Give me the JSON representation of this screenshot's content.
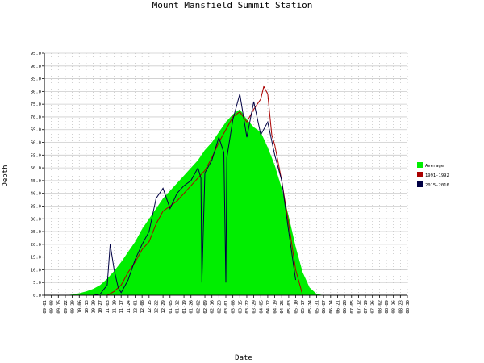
{
  "chart_data": {
    "type": "area",
    "title": "Mount Mansfield Summit Station",
    "xlabel": "Date",
    "ylabel": "Depth",
    "ylim": [
      0,
      95
    ],
    "y_ticks": [
      "0.0",
      "5.0",
      "10.0",
      "15.0",
      "20.0",
      "25.0",
      "30.0",
      "35.0",
      "40.0",
      "45.0",
      "50.0",
      "55.0",
      "60.0",
      "65.0",
      "70.0",
      "75.0",
      "80.0",
      "85.0",
      "90.0",
      "95.0"
    ],
    "x_ticks": [
      "09-01",
      "09-08",
      "09-15",
      "09-22",
      "09-29",
      "10-06",
      "10-13",
      "10-20",
      "10-27",
      "11-03",
      "11-10",
      "11-17",
      "11-24",
      "12-01",
      "12-08",
      "12-15",
      "12-22",
      "12-29",
      "01-05",
      "01-12",
      "01-19",
      "01-26",
      "02-02",
      "02-09",
      "02-16",
      "02-23",
      "03-01",
      "03-08",
      "03-15",
      "03-22",
      "03-29",
      "04-05",
      "04-12",
      "04-19",
      "04-26",
      "05-03",
      "05-10",
      "05-17",
      "05-24",
      "05-31",
      "06-07",
      "06-14",
      "06-21",
      "06-28",
      "07-05",
      "07-12",
      "07-19",
      "07-26",
      "08-02",
      "08-09",
      "08-16",
      "08-23",
      "08-30"
    ],
    "grid": true,
    "legend_position": "right",
    "series": [
      {
        "name": "Average",
        "color": "#00ee00",
        "style": "area",
        "x": [
          7,
          14,
          21,
          28,
          35,
          42,
          49,
          56,
          63,
          70,
          77,
          84,
          91,
          98,
          105,
          112,
          119,
          126,
          133,
          140,
          147,
          154,
          161,
          168,
          175,
          182,
          189,
          196,
          203,
          210,
          217,
          224,
          231,
          238,
          245,
          252,
          259,
          266,
          273,
          280,
          287
        ],
        "values": [
          0,
          0,
          0,
          0.3,
          0.8,
          1.5,
          2.5,
          4,
          6.5,
          9.5,
          13,
          17,
          21,
          26,
          30,
          34,
          38,
          41,
          44,
          47,
          50,
          53,
          57,
          60,
          64,
          68,
          71,
          73,
          69,
          66,
          64,
          58,
          51,
          42,
          31,
          19,
          9,
          3,
          0.5,
          0,
          0
        ]
      },
      {
        "name": "1991-1992",
        "color": "#aa0000",
        "style": "line",
        "x": [
          63,
          70,
          77,
          84,
          91,
          98,
          105,
          112,
          119,
          126,
          133,
          140,
          147,
          154,
          161,
          168,
          175,
          182,
          189,
          196,
          203,
          210,
          217,
          220,
          224,
          228,
          231,
          238,
          245,
          252,
          259
        ],
        "values": [
          0,
          1.5,
          4,
          9,
          13,
          18,
          21,
          28,
          33,
          35,
          37,
          40,
          43,
          46,
          49,
          54,
          60,
          65,
          70,
          72,
          68,
          73,
          77,
          82,
          79,
          63,
          59,
          45,
          28,
          10,
          0
        ]
      },
      {
        "name": "2015-2016",
        "color": "#000044",
        "style": "line",
        "x": [
          49,
          56,
          63,
          66,
          70,
          74,
          77,
          84,
          91,
          98,
          105,
          112,
          119,
          126,
          133,
          140,
          147,
          154,
          157,
          158,
          161,
          168,
          175,
          180,
          182,
          183,
          189,
          196,
          203,
          210,
          217,
          224,
          231,
          238,
          245,
          252
        ],
        "values": [
          0,
          0.5,
          4,
          20,
          10,
          3,
          1,
          6,
          14,
          20,
          25,
          38,
          42,
          34,
          40,
          43,
          45,
          50,
          46,
          5,
          48,
          53,
          62,
          56,
          5,
          54,
          69,
          79,
          62,
          76,
          63,
          68,
          55,
          45,
          25,
          6
        ]
      }
    ]
  }
}
